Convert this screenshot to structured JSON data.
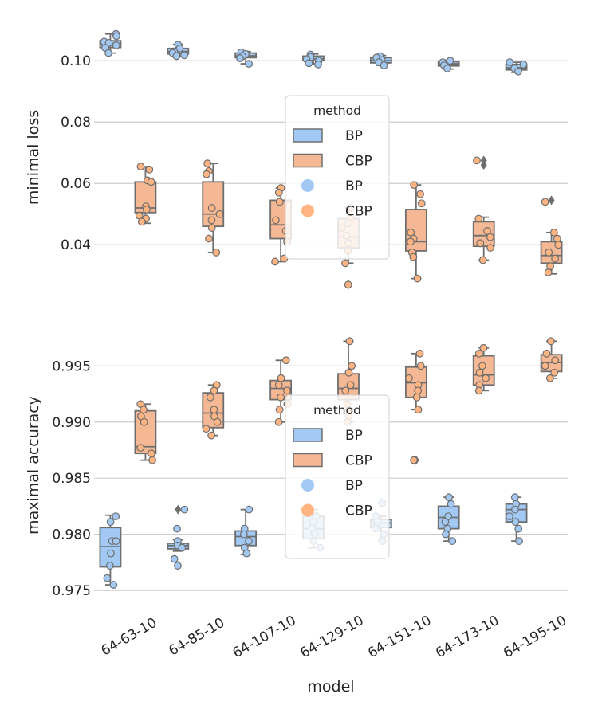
{
  "chart_data": [
    {
      "type": "box",
      "ylabel": "minimal loss",
      "yticks": [
        0.04,
        0.06,
        0.08,
        0.1
      ],
      "ytick_labels": [
        "0.04",
        "0.06",
        "0.08",
        "0.10"
      ],
      "ylim": [
        0.025,
        0.112
      ],
      "grid": true,
      "categories": [
        "64-63-10",
        "64-85-10",
        "64-107-10",
        "64-129-10",
        "64-151-10",
        "64-173-10",
        "64-195-10"
      ],
      "series": [
        {
          "name": "BP",
          "box": [
            {
              "q1": 0.1043,
              "median": 0.1052,
              "q3": 0.1065,
              "whislo": 0.1025,
              "whishi": 0.1087,
              "fliers": []
            },
            {
              "q1": 0.1022,
              "median": 0.103,
              "q3": 0.104,
              "whislo": 0.1015,
              "whishi": 0.1053,
              "fliers": []
            },
            {
              "q1": 0.101,
              "median": 0.1016,
              "q3": 0.1025,
              "whislo": 0.099,
              "whishi": 0.103,
              "fliers": []
            },
            {
              "q1": 0.1,
              "median": 0.1006,
              "q3": 0.1015,
              "whislo": 0.099,
              "whishi": 0.1022,
              "fliers": []
            },
            {
              "q1": 0.0993,
              "median": 0.1,
              "q3": 0.101,
              "whislo": 0.0985,
              "whishi": 0.1017,
              "fliers": []
            },
            {
              "q1": 0.0983,
              "median": 0.099,
              "q3": 0.0997,
              "whislo": 0.0973,
              "whishi": 0.1002,
              "fliers": []
            },
            {
              "q1": 0.097,
              "median": 0.0977,
              "q3": 0.0988,
              "whislo": 0.0962,
              "whishi": 0.0995,
              "fliers": []
            }
          ],
          "points": [
            [
              0.1087,
              0.108,
              0.1062,
              0.1058,
              0.105,
              0.1042,
              0.1025
            ],
            [
              0.1052,
              0.104,
              0.103,
              0.1025,
              0.1018,
              0.1015
            ],
            [
              0.1027,
              0.1022,
              0.1015,
              0.1008,
              0.099
            ],
            [
              0.102,
              0.1012,
              0.1005,
              0.1,
              0.0992,
              0.0988
            ],
            [
              0.1015,
              0.101,
              0.1002,
              0.0995,
              0.0985
            ],
            [
              0.1,
              0.0995,
              0.0985,
              0.0975
            ],
            [
              0.0995,
              0.0988,
              0.0975,
              0.0965
            ]
          ]
        },
        {
          "name": "CBP",
          "box": [
            {
              "q1": 0.0505,
              "median": 0.052,
              "q3": 0.0605,
              "whislo": 0.047,
              "whishi": 0.0655,
              "fliers": []
            },
            {
              "q1": 0.046,
              "median": 0.05,
              "q3": 0.0605,
              "whislo": 0.0375,
              "whishi": 0.0665,
              "fliers": []
            },
            {
              "q1": 0.042,
              "median": 0.0465,
              "q3": 0.0545,
              "whislo": 0.0345,
              "whishi": 0.0585,
              "fliers": []
            },
            {
              "q1": 0.039,
              "median": 0.0425,
              "q3": 0.0485,
              "whislo": 0.034,
              "whishi": 0.052,
              "fliers": [
                0.027
              ]
            },
            {
              "q1": 0.038,
              "median": 0.041,
              "q3": 0.0515,
              "whislo": 0.029,
              "whishi": 0.0595,
              "fliers": []
            },
            {
              "q1": 0.0395,
              "median": 0.043,
              "q3": 0.0475,
              "whislo": 0.035,
              "whishi": 0.049,
              "fliers": [
                0.066,
                0.0675
              ]
            },
            {
              "q1": 0.034,
              "median": 0.0365,
              "q3": 0.041,
              "whislo": 0.0305,
              "whishi": 0.044,
              "fliers": [
                0.0545
              ]
            }
          ],
          "points": [
            [
              0.0655,
              0.0645,
              0.061,
              0.0605,
              0.0525,
              0.0515,
              0.0495,
              0.0485,
              0.0475
            ],
            [
              0.0665,
              0.064,
              0.063,
              0.052,
              0.05,
              0.048,
              0.0455,
              0.042,
              0.0375
            ],
            [
              0.0585,
              0.057,
              0.054,
              0.048,
              0.0445,
              0.041,
              0.0355,
              0.0345
            ],
            [
              0.052,
              0.049,
              0.047,
              0.0455,
              0.043,
              0.0405,
              0.038,
              0.034,
              0.027
            ],
            [
              0.0595,
              0.0565,
              0.0535,
              0.044,
              0.042,
              0.041,
              0.0375,
              0.036,
              0.029
            ],
            [
              0.0675,
              0.0485,
              0.0445,
              0.0425,
              0.0405,
              0.039,
              0.035
            ],
            [
              0.054,
              0.044,
              0.042,
              0.04,
              0.0375,
              0.0355,
              0.033,
              0.031
            ]
          ]
        }
      ],
      "legend": {
        "title": "method",
        "placement": "center",
        "entries": [
          {
            "label": "BP",
            "marker": "box"
          },
          {
            "label": "CBP",
            "marker": "box"
          },
          {
            "label": "BP",
            "marker": "dot"
          },
          {
            "label": "CBP",
            "marker": "dot"
          }
        ]
      }
    },
    {
      "type": "box",
      "ylabel": "maximal accuracy",
      "xlabel": "model",
      "yticks": [
        0.975,
        0.98,
        0.985,
        0.99,
        0.995
      ],
      "ytick_labels": [
        "0.975",
        "0.980",
        "0.985",
        "0.990",
        "0.995"
      ],
      "ylim": [
        0.9738,
        0.9985
      ],
      "grid": true,
      "categories": [
        "64-63-10",
        "64-85-10",
        "64-107-10",
        "64-129-10",
        "64-151-10",
        "64-173-10",
        "64-195-10"
      ],
      "series": [
        {
          "name": "BP",
          "box": [
            {
              "q1": 0.9771,
              "median": 0.9789,
              "q3": 0.9806,
              "whislo": 0.9755,
              "whishi": 0.9817,
              "fliers": []
            },
            {
              "q1": 0.9787,
              "median": 0.979,
              "q3": 0.9792,
              "whislo": 0.9785,
              "whishi": 0.9795,
              "fliers": [
                0.9822,
                0.9772
              ]
            },
            {
              "q1": 0.979,
              "median": 0.9798,
              "q3": 0.9803,
              "whislo": 0.9782,
              "whishi": 0.9822,
              "fliers": []
            },
            {
              "q1": 0.9796,
              "median": 0.9805,
              "q3": 0.9816,
              "whislo": 0.9788,
              "whishi": 0.9822,
              "fliers": []
            },
            {
              "q1": 0.9806,
              "median": 0.981,
              "q3": 0.9813,
              "whislo": 0.9803,
              "whishi": 0.9816,
              "fliers": [
                0.9828,
                0.9795
              ]
            },
            {
              "q1": 0.9805,
              "median": 0.9815,
              "q3": 0.9825,
              "whislo": 0.9794,
              "whishi": 0.9833,
              "fliers": []
            },
            {
              "q1": 0.9811,
              "median": 0.9822,
              "q3": 0.9827,
              "whislo": 0.9794,
              "whishi": 0.9833,
              "fliers": []
            }
          ],
          "points": [
            [
              0.9816,
              0.9811,
              0.9794,
              0.9794,
              0.9783,
              0.9772,
              0.9761,
              0.9755
            ],
            [
              0.9822,
              0.9805,
              0.9794,
              0.979,
              0.9788,
              0.9778,
              0.9772
            ],
            [
              0.9822,
              0.9805,
              0.98,
              0.9794,
              0.9788,
              0.9783
            ],
            [
              0.9822,
              0.9816,
              0.9811,
              0.9805,
              0.98,
              0.9794,
              0.9788
            ],
            [
              0.9828,
              0.9816,
              0.9811,
              0.9805,
              0.98,
              0.9794
            ],
            [
              0.9833,
              0.9827,
              0.9816,
              0.9811,
              0.9805,
              0.98,
              0.9794
            ],
            [
              0.9833,
              0.9827,
              0.9822,
              0.9816,
              0.9811,
              0.9805,
              0.9794
            ]
          ]
        },
        {
          "name": "CBP",
          "box": [
            {
              "q1": 0.9872,
              "median": 0.9878,
              "q3": 0.991,
              "whislo": 0.9866,
              "whishi": 0.9916,
              "fliers": []
            },
            {
              "q1": 0.9895,
              "median": 0.9908,
              "q3": 0.9926,
              "whislo": 0.9888,
              "whishi": 0.9933,
              "fliers": []
            },
            {
              "q1": 0.992,
              "median": 0.993,
              "q3": 0.9937,
              "whislo": 0.99,
              "whishi": 0.9955,
              "fliers": []
            },
            {
              "q1": 0.992,
              "median": 0.993,
              "q3": 0.9943,
              "whislo": 0.99,
              "whishi": 0.9972,
              "fliers": []
            },
            {
              "q1": 0.9922,
              "median": 0.9935,
              "q3": 0.9949,
              "whislo": 0.9911,
              "whishi": 0.9961,
              "fliers": [
                0.9866
              ]
            },
            {
              "q1": 0.9933,
              "median": 0.9942,
              "q3": 0.9959,
              "whislo": 0.9928,
              "whishi": 0.9966,
              "fliers": []
            },
            {
              "q1": 0.9945,
              "median": 0.9953,
              "q3": 0.996,
              "whislo": 0.9939,
              "whishi": 0.9972,
              "fliers": []
            }
          ],
          "points": [
            [
              0.9916,
              0.9911,
              0.9905,
              0.99,
              0.9877,
              0.9872,
              0.9866
            ],
            [
              0.9933,
              0.9928,
              0.9922,
              0.9911,
              0.9905,
              0.99,
              0.9894,
              0.9888
            ],
            [
              0.9955,
              0.9939,
              0.9933,
              0.9928,
              0.9922,
              0.9916,
              0.9911,
              0.99
            ],
            [
              0.9972,
              0.995,
              0.9944,
              0.9933,
              0.9928,
              0.9916,
              0.9911,
              0.9905,
              0.99
            ],
            [
              0.9961,
              0.995,
              0.9939,
              0.9933,
              0.9928,
              0.9922,
              0.9911,
              0.9866
            ],
            [
              0.9966,
              0.9961,
              0.995,
              0.9944,
              0.9939,
              0.9933,
              0.9928
            ],
            [
              0.9972,
              0.9961,
              0.9955,
              0.995,
              0.9944,
              0.9939
            ]
          ]
        }
      ],
      "legend": {
        "title": "method",
        "placement": "center",
        "entries": [
          {
            "label": "BP",
            "marker": "box"
          },
          {
            "label": "CBP",
            "marker": "box"
          },
          {
            "label": "BP",
            "marker": "dot"
          },
          {
            "label": "CBP",
            "marker": "dot"
          }
        ]
      }
    }
  ],
  "colors": {
    "BP_box": "#a1c9f4",
    "CBP_box": "#f4b894",
    "BP_point": "#a1c9f4",
    "CBP_point": "#ffb482",
    "edge": "#6e6e6e",
    "grid": "#cccccc",
    "text": "#262626"
  }
}
